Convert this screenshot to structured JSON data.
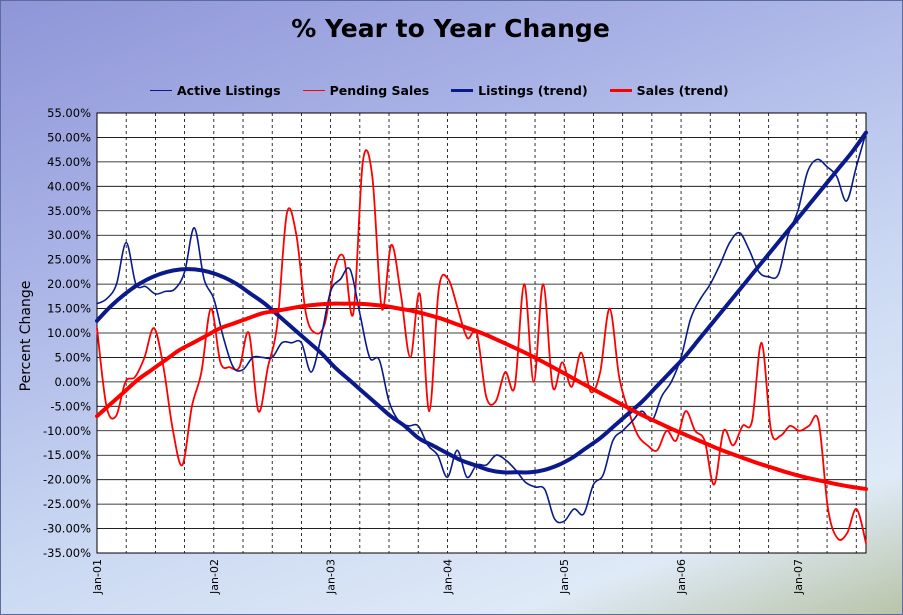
{
  "chart_data": {
    "type": "line",
    "title": "% Year to Year Change",
    "ylabel": "Percent Change",
    "xlabel": "",
    "ylim": [
      -35,
      55
    ],
    "y_tick_step": 5,
    "y_tick_labels": [
      "55.00%",
      "50.00%",
      "45.00%",
      "40.00%",
      "35.00%",
      "30.00%",
      "25.00%",
      "20.00%",
      "15.00%",
      "10.00%",
      "5.00%",
      "0.00%",
      "-5.00%",
      "-10.00%",
      "-15.00%",
      "-20.00%",
      "-25.00%",
      "-30.00%",
      "-35.00%"
    ],
    "x_tick_labels": [
      "Jan-01",
      "Jan-02",
      "Jan-03",
      "Jan-04",
      "Jan-05",
      "Jan-06",
      "Jan-07"
    ],
    "x_range_months": 79,
    "grid": "vertical dashed (quarterly), horizontal solid",
    "legend_position": "top",
    "series": [
      {
        "name": "Active Listings",
        "color": "#0a1a8c",
        "values": [
          16,
          17,
          20,
          28.5,
          20,
          19.5,
          18,
          18.5,
          19,
          22.5,
          31.5,
          21,
          17,
          9,
          3,
          2.5,
          5,
          5,
          5,
          8,
          8,
          8,
          2,
          9,
          18.5,
          21,
          23,
          14,
          5,
          4.5,
          -4,
          -8,
          -9,
          -9,
          -13,
          -15,
          -19.5,
          -14,
          -19.5,
          -17,
          -17,
          -15,
          -16,
          -18,
          -20.5,
          -21.5,
          -22,
          -28,
          -28.5,
          -26,
          -27,
          -21,
          -19,
          -12,
          -10,
          -8,
          -6,
          -8,
          -3,
          0,
          5,
          13,
          17,
          20,
          24,
          28.5,
          30.5,
          27,
          22.5,
          21.5,
          22,
          30,
          35,
          43,
          45.5,
          44,
          42,
          37,
          44,
          51
        ]
      },
      {
        "name": "Pending Sales",
        "color": "#ff0000",
        "values": [
          11,
          -5,
          -7,
          0,
          1,
          5,
          11,
          3,
          -10,
          -17,
          -5,
          2,
          15,
          4,
          3,
          3,
          10,
          -6,
          3,
          12,
          34.5,
          30,
          14,
          10,
          12,
          23,
          25.5,
          14,
          45,
          42,
          15,
          28,
          18,
          5,
          18,
          -6,
          19,
          21,
          15,
          9,
          10,
          -3,
          -4,
          2,
          -1,
          20,
          0,
          20,
          -1,
          4,
          -1,
          6,
          -2,
          2,
          15,
          1,
          -6,
          -11,
          -13,
          -14,
          -10,
          -12,
          -6,
          -10,
          -12,
          -21,
          -10,
          -13,
          -9,
          -8,
          8,
          -10,
          -11,
          -9,
          -10,
          -9,
          -8,
          -26,
          -32,
          -31,
          -26,
          -33
        ]
      },
      {
        "name": "Listings (trend)",
        "color": "#0a1a8c",
        "values": [
          12.5,
          15.5,
          18,
          20,
          21.5,
          22.5,
          23,
          23,
          22.5,
          21.5,
          20,
          18,
          16,
          13.5,
          11,
          8.5,
          6,
          3,
          0.5,
          -2,
          -4.5,
          -7,
          -9,
          -11.5,
          -13,
          -14.5,
          -16,
          -17,
          -18,
          -18.5,
          -18.5,
          -18.5,
          -18,
          -17,
          -15.5,
          -13.5,
          -11.5,
          -9,
          -6.5,
          -4,
          -1,
          2,
          5,
          8.5,
          12,
          15.5,
          19,
          22.5,
          26,
          29.5,
          33,
          36.5,
          40,
          43.5,
          47,
          51
        ]
      },
      {
        "name": "Sales (trend)",
        "color": "#ff0000",
        "values": [
          -7,
          -4.5,
          -2,
          0.5,
          2.5,
          4.5,
          6.5,
          8,
          9.5,
          11,
          12,
          13,
          14,
          14.5,
          15,
          15.5,
          15.8,
          16,
          16,
          16,
          15.8,
          15.5,
          15,
          14.5,
          13.8,
          13,
          12,
          11,
          10,
          8.8,
          7.5,
          6.2,
          4.8,
          3.3,
          1.8,
          0.2,
          -1.3,
          -2.8,
          -4.3,
          -5.8,
          -7.2,
          -8.5,
          -9.8,
          -11,
          -12.2,
          -13.4,
          -14.5,
          -15.5,
          -16.5,
          -17.4,
          -18.3,
          -19.1,
          -19.8,
          -20.4,
          -21,
          -21.5,
          -21.9
        ]
      }
    ]
  }
}
